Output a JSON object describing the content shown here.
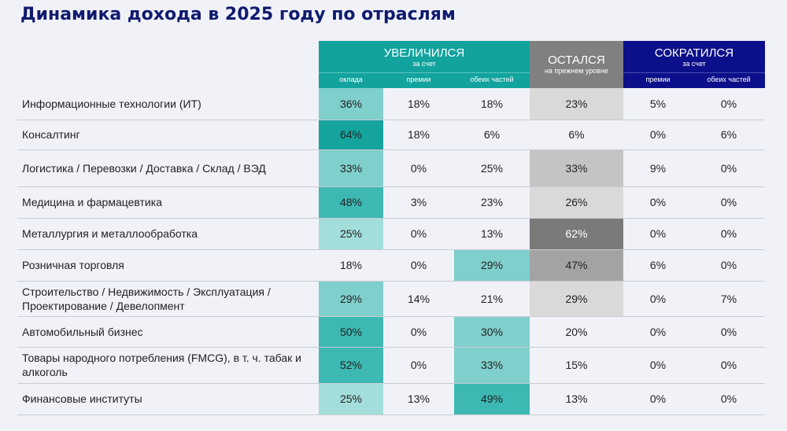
{
  "title": "Динамика дохода в 2025 году по отраслям",
  "headers": {
    "increased": "УВЕЛИЧИЛСЯ",
    "increased_sub": "за счет",
    "stayed": "ОСТАЛСЯ",
    "stayed_sub": "на прежнем уровне",
    "decreased": "СОКРАТИЛСЯ",
    "decreased_sub": "за счет",
    "cols": [
      "оклада",
      "премии",
      "обеих частей",
      "премии",
      "обеих частей"
    ]
  },
  "colors": {
    "teal": "#12a39e",
    "gray": "#808080",
    "navy": "#0c0f8a"
  },
  "chart_data": {
    "type": "table",
    "columns": [
      "Увеличился: оклада",
      "Увеличился: премии",
      "Увеличился: обеих частей",
      "Остался на прежнем уровне",
      "Сократился: премии",
      "Сократился: обеих частей"
    ],
    "rows": [
      {
        "label": "Информационные технологии (ИТ)",
        "values": [
          "36%",
          "18%",
          "18%",
          "23%",
          "5%",
          "0%"
        ],
        "shades": [
          "#7fcfcc",
          "",
          "",
          "#d9d9d9",
          "",
          ""
        ]
      },
      {
        "label": "Консалтинг",
        "values": [
          "64%",
          "18%",
          "6%",
          "6%",
          "0%",
          "6%"
        ],
        "shades": [
          "#14a39d",
          "",
          "",
          "",
          "",
          ""
        ]
      },
      {
        "label": "Логистика / Перевозки / Доставка / Склад / ВЭД",
        "values": [
          "33%",
          "0%",
          "25%",
          "33%",
          "9%",
          "0%"
        ],
        "shades": [
          "#7fcfcc",
          "",
          "",
          "#c4c4c4",
          "",
          ""
        ]
      },
      {
        "label": "Медицина и фармацевтика",
        "values": [
          "48%",
          "3%",
          "23%",
          "26%",
          "0%",
          "0%"
        ],
        "shades": [
          "#3db8b2",
          "",
          "",
          "#d9d9d9",
          "",
          ""
        ]
      },
      {
        "label": "Металлургия и металлообработка",
        "values": [
          "25%",
          "0%",
          "13%",
          "62%",
          "0%",
          "0%"
        ],
        "shades": [
          "#a3dedb",
          "",
          "",
          "#7a7a7a",
          "",
          ""
        ]
      },
      {
        "label": "Розничная торговля",
        "values": [
          "18%",
          "0%",
          "29%",
          "47%",
          "6%",
          "0%"
        ],
        "shades": [
          "",
          "",
          "#7fcfcc",
          "#a3a3a3",
          "",
          ""
        ]
      },
      {
        "label": "Строительство / Недвижимость / Эксплуатация / Проектирование / Девелопмент",
        "values": [
          "29%",
          "14%",
          "21%",
          "29%",
          "0%",
          "7%"
        ],
        "shades": [
          "#7fcfcc",
          "",
          "",
          "#d9d9d9",
          "",
          ""
        ]
      },
      {
        "label": "Автомобильный бизнес",
        "values": [
          "50%",
          "0%",
          "30%",
          "20%",
          "0%",
          "0%"
        ],
        "shades": [
          "#3db8b2",
          "",
          "#7fcfcc",
          "",
          "",
          ""
        ]
      },
      {
        "label": "Товары народного потребления (FMCG), в т. ч. табак и алкоголь",
        "values": [
          "52%",
          "0%",
          "33%",
          "15%",
          "0%",
          "0%"
        ],
        "shades": [
          "#3db8b2",
          "",
          "#7fcfcc",
          "",
          "",
          ""
        ]
      },
      {
        "label": "Финансовые институты",
        "values": [
          "25%",
          "13%",
          "49%",
          "13%",
          "0%",
          "0%"
        ],
        "shades": [
          "#a3dedb",
          "",
          "#3db8b2",
          "",
          "",
          ""
        ]
      }
    ]
  }
}
